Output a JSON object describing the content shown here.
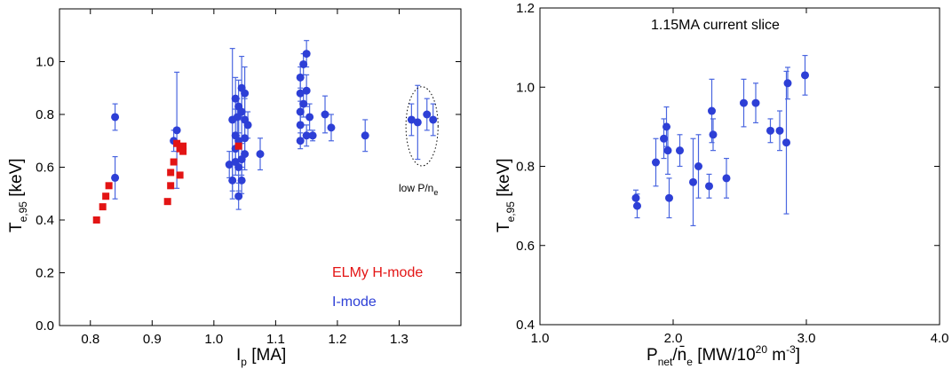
{
  "colors": {
    "i_mode": "#2d3fd6",
    "elmy_h_mode": "#e31414",
    "error_bar": "#4a66e0",
    "axis": "#000000"
  },
  "chart_data": [
    {
      "type": "scatter",
      "xlabel": {
        "main": "I",
        "sub": "p",
        "rest": " [MA]"
      },
      "ylabel": {
        "main": "T",
        "sub": "e,95",
        "rest": " [keV]"
      },
      "xlim": [
        0.75,
        1.4
      ],
      "ylim": [
        0.0,
        1.2
      ],
      "xticks": [
        "0.8",
        "0.9",
        "1.0",
        "1.1",
        "1.2",
        "1.3"
      ],
      "xtick_values": [
        0.8,
        0.9,
        1.0,
        1.1,
        1.2,
        1.3
      ],
      "yticks": [
        "0.0",
        "0.2",
        "0.4",
        "0.6",
        "0.8",
        "1.0"
      ],
      "ytick_values": [
        0.0,
        0.2,
        0.4,
        0.6,
        0.8,
        1.0
      ],
      "grid": false,
      "legend": {
        "placement": "bottom-right",
        "entries": [
          {
            "label": "ELMy H-mode",
            "color": "#e31414"
          },
          {
            "label": "I-mode",
            "color": "#2d3fd6"
          }
        ]
      },
      "annotation": {
        "text_main": "low P/n",
        "text_sub": "e",
        "center": [
          1.337,
          0.755
        ],
        "radii": [
          0.026,
          0.15
        ]
      },
      "series": [
        {
          "name": "I-mode",
          "marker": "circle",
          "points": [
            [
              0.84,
              0.79,
              0.05
            ],
            [
              0.84,
              0.56,
              0.08
            ],
            [
              0.935,
              0.7,
              0.04
            ],
            [
              0.94,
              0.74,
              0.22
            ],
            [
              1.025,
              0.61,
              0.05
            ],
            [
              1.03,
              0.55,
              0.07
            ],
            [
              1.03,
              0.78,
              0.27
            ],
            [
              1.035,
              0.86,
              0.08
            ],
            [
              1.035,
              0.72,
              0.1
            ],
            [
              1.035,
              0.67,
              0.06
            ],
            [
              1.035,
              0.62,
              0.05
            ],
            [
              1.038,
              0.79,
              0.07
            ],
            [
              1.04,
              0.7,
              0.1
            ],
            [
              1.04,
              0.6,
              0.09
            ],
            [
              1.04,
              0.49,
              0.05
            ],
            [
              1.04,
              0.83,
              0.1
            ],
            [
              1.045,
              0.9,
              0.12
            ],
            [
              1.045,
              0.81,
              0.1
            ],
            [
              1.045,
              0.63,
              0.06
            ],
            [
              1.045,
              0.55,
              0.05
            ],
            [
              1.05,
              0.88,
              0.1
            ],
            [
              1.05,
              0.78,
              0.08
            ],
            [
              1.05,
              0.71,
              0.06
            ],
            [
              1.05,
              0.65,
              0.06
            ],
            [
              1.055,
              0.76,
              0.05
            ],
            [
              1.075,
              0.65,
              0.06
            ],
            [
              1.14,
              0.94,
              0.04
            ],
            [
              1.14,
              0.88,
              0.06
            ],
            [
              1.14,
              0.81,
              0.04
            ],
            [
              1.14,
              0.76,
              0.05
            ],
            [
              1.14,
              0.7,
              0.03
            ],
            [
              1.145,
              0.99,
              0.04
            ],
            [
              1.145,
              0.84,
              0.05
            ],
            [
              1.15,
              1.03,
              0.05
            ],
            [
              1.15,
              0.89,
              0.06
            ],
            [
              1.15,
              0.72,
              0.04
            ],
            [
              1.155,
              0.79,
              0.05
            ],
            [
              1.16,
              0.72,
              0.02
            ],
            [
              1.18,
              0.8,
              0.07
            ],
            [
              1.19,
              0.75,
              0.05
            ],
            [
              1.245,
              0.72,
              0.06
            ],
            [
              1.32,
              0.78,
              0.06
            ],
            [
              1.33,
              0.77,
              0.14
            ],
            [
              1.345,
              0.8,
              0.06
            ],
            [
              1.355,
              0.78,
              0.06
            ]
          ]
        },
        {
          "name": "ELMy H-mode",
          "marker": "square",
          "points": [
            [
              0.81,
              0.4
            ],
            [
              0.82,
              0.45
            ],
            [
              0.825,
              0.49
            ],
            [
              0.83,
              0.53
            ],
            [
              0.925,
              0.47
            ],
            [
              0.93,
              0.58
            ],
            [
              0.93,
              0.53
            ],
            [
              0.935,
              0.62
            ],
            [
              0.94,
              0.69
            ],
            [
              0.945,
              0.67
            ],
            [
              0.945,
              0.57
            ],
            [
              0.95,
              0.68
            ],
            [
              0.95,
              0.66
            ],
            [
              1.04,
              0.68
            ]
          ]
        }
      ]
    },
    {
      "type": "scatter",
      "title": "1.15MA current slice",
      "xlabel": {
        "p_main": "P",
        "p_sub": "net",
        "slash": "/n̄",
        "n_sub": "e",
        "units": " [MW/10",
        "exp1": "20",
        "m": " m",
        "exp2": "-3",
        "close": "]"
      },
      "ylabel": {
        "main": "T",
        "sub": "e,95",
        "rest": " [keV]"
      },
      "xlim": [
        1.0,
        4.0
      ],
      "ylim": [
        0.4,
        1.2
      ],
      "xticks": [
        "1.0",
        "2.0",
        "3.0",
        "4.0"
      ],
      "xtick_values": [
        1.0,
        2.0,
        3.0,
        4.0
      ],
      "yticks": [
        "0.4",
        "0.6",
        "0.8",
        "1.0",
        "1.2"
      ],
      "ytick_values": [
        0.4,
        0.6,
        0.8,
        1.0,
        1.2
      ],
      "grid": false,
      "series": [
        {
          "name": "I-mode",
          "marker": "circle",
          "points": [
            [
              1.72,
              0.72,
              0.02
            ],
            [
              1.73,
              0.7,
              0.03
            ],
            [
              1.87,
              0.81,
              0.06
            ],
            [
              1.93,
              0.87,
              0.05
            ],
            [
              1.95,
              0.9,
              0.05
            ],
            [
              1.96,
              0.84,
              0.06
            ],
            [
              1.97,
              0.72,
              0.05
            ],
            [
              2.05,
              0.84,
              0.04
            ],
            [
              2.15,
              0.76,
              0.11
            ],
            [
              2.19,
              0.8,
              0.08
            ],
            [
              2.27,
              0.75,
              0.03
            ],
            [
              2.29,
              0.94,
              0.08
            ],
            [
              2.3,
              0.88,
              0.04
            ],
            [
              2.4,
              0.77,
              0.05
            ],
            [
              2.53,
              0.96,
              0.06
            ],
            [
              2.62,
              0.96,
              0.05
            ],
            [
              2.73,
              0.89,
              0.03
            ],
            [
              2.8,
              0.89,
              0.05
            ],
            [
              2.85,
              0.86,
              0.18
            ],
            [
              2.86,
              1.01,
              0.04
            ],
            [
              2.99,
              1.03,
              0.05
            ]
          ]
        }
      ]
    }
  ]
}
